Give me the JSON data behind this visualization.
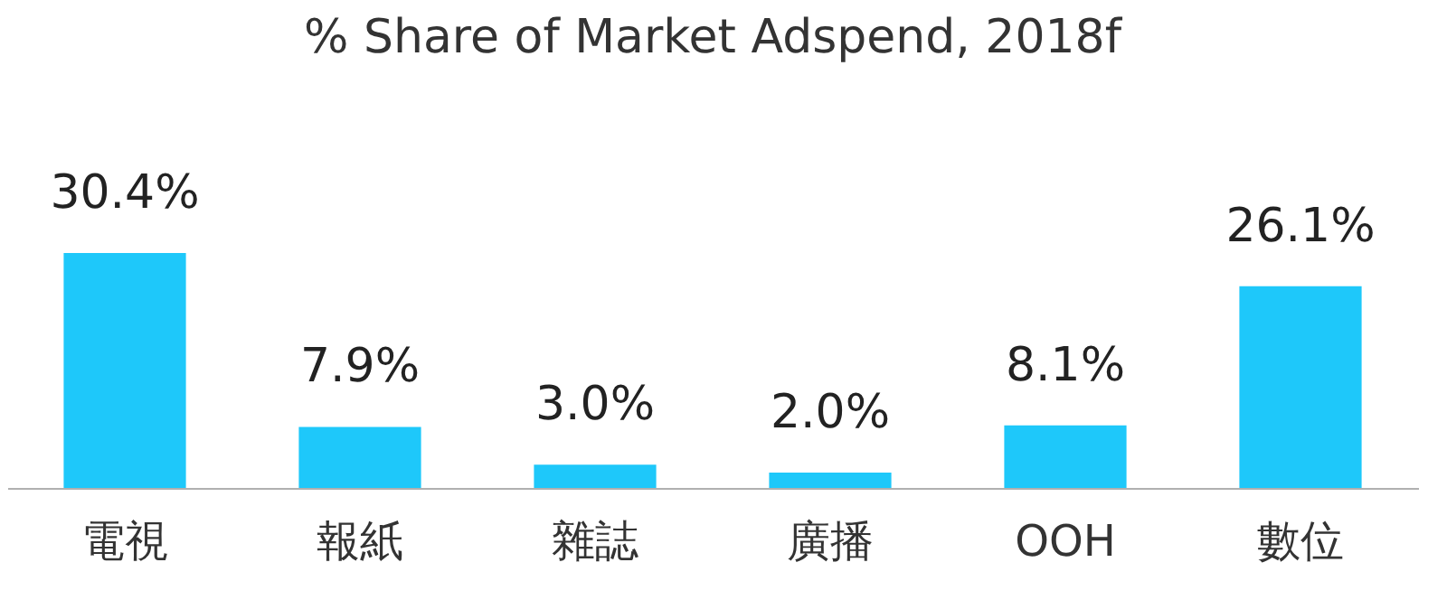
{
  "chart_data": {
    "type": "bar",
    "title": "% Share of Market Adspend, 2018f",
    "categories": [
      "電視",
      "報紙",
      "雜誌",
      "廣播",
      "OOH",
      "數位"
    ],
    "values": [
      30.4,
      7.9,
      3.0,
      2.0,
      8.1,
      26.1
    ],
    "value_labels": [
      "30.4%",
      "7.9%",
      "3.0%",
      "2.0%",
      "8.1%",
      "26.1%"
    ],
    "color": "#1ec8fa"
  }
}
